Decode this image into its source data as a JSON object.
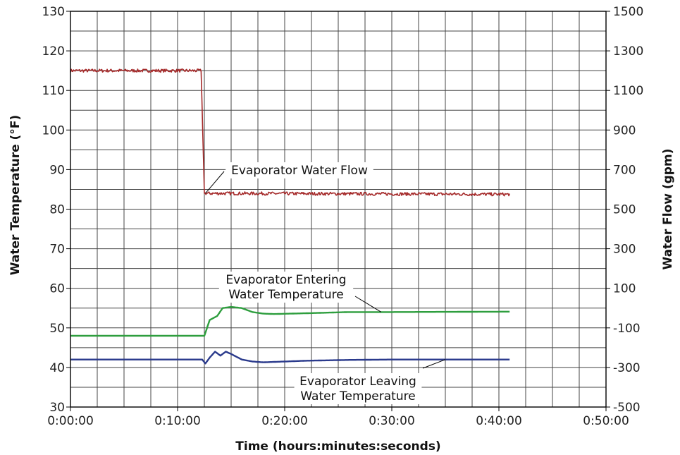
{
  "chart_data": {
    "type": "line",
    "xlabel": "Time (hours:minutes:seconds)",
    "ylabel_left": "Water Temperature (°F)",
    "ylabel_right": "Water Flow (gpm)",
    "x_unit": "minutes",
    "xlim": [
      0,
      50
    ],
    "ylim_left": [
      30,
      130
    ],
    "ylim_right": [
      -500,
      1500
    ],
    "x_ticks": [
      {
        "value": 0,
        "label": "0:00:00"
      },
      {
        "value": 10,
        "label": "0:10:00"
      },
      {
        "value": 20,
        "label": "0:20:00"
      },
      {
        "value": 30,
        "label": "0:30:00"
      },
      {
        "value": 40,
        "label": "0:40:00"
      },
      {
        "value": 50,
        "label": "0:50:00"
      }
    ],
    "y_left_ticks": [
      "30",
      "40",
      "50",
      "60",
      "70",
      "80",
      "90",
      "100",
      "110",
      "120",
      "130"
    ],
    "y_right_ticks": [
      "-500",
      "-300",
      "-100",
      "100",
      "300",
      "500",
      "700",
      "900",
      "1100",
      "1300",
      "1500"
    ],
    "grid": true,
    "series": [
      {
        "name": "Evaporator Water Flow",
        "axis": "right",
        "color": "#a52a2a",
        "noise": 8,
        "points": [
          [
            0,
            1200
          ],
          [
            12.2,
            1200
          ],
          [
            12.5,
            580
          ],
          [
            41,
            575
          ]
        ]
      },
      {
        "name": "Evaporator Entering Water Temperature",
        "axis": "left",
        "color": "#2e9e3e",
        "noise": 0,
        "points": [
          [
            0,
            48
          ],
          [
            12.5,
            48
          ],
          [
            13,
            52
          ],
          [
            13.7,
            53
          ],
          [
            14.2,
            55
          ],
          [
            15,
            55.3
          ],
          [
            16,
            55
          ],
          [
            17,
            54
          ],
          [
            18,
            53.6
          ],
          [
            19,
            53.5
          ],
          [
            22,
            53.7
          ],
          [
            26,
            54
          ],
          [
            30,
            54
          ],
          [
            41,
            54.1
          ]
        ]
      },
      {
        "name": "Evaporator Leaving Water Temperature",
        "axis": "left",
        "color": "#2a3a8c",
        "noise": 0,
        "points": [
          [
            0,
            42
          ],
          [
            12.3,
            42
          ],
          [
            12.6,
            41
          ],
          [
            13,
            42.5
          ],
          [
            13.5,
            44
          ],
          [
            14,
            43
          ],
          [
            14.5,
            44
          ],
          [
            15,
            43.4
          ],
          [
            16,
            42
          ],
          [
            17,
            41.5
          ],
          [
            18,
            41.3
          ],
          [
            19,
            41.4
          ],
          [
            22,
            41.7
          ],
          [
            26,
            41.9
          ],
          [
            30,
            42
          ],
          [
            41,
            42
          ]
        ]
      }
    ],
    "annotations": [
      {
        "lines": [
          "Evaporator Water Flow"
        ],
        "target": [
          12.6,
          580
        ]
      },
      {
        "lines": [
          "Evaporator Entering",
          "Water Temperature"
        ],
        "target": [
          29,
          54
        ]
      },
      {
        "lines": [
          "Evaporator Leaving",
          "Water Temperature"
        ],
        "target": [
          35,
          42
        ]
      }
    ]
  }
}
